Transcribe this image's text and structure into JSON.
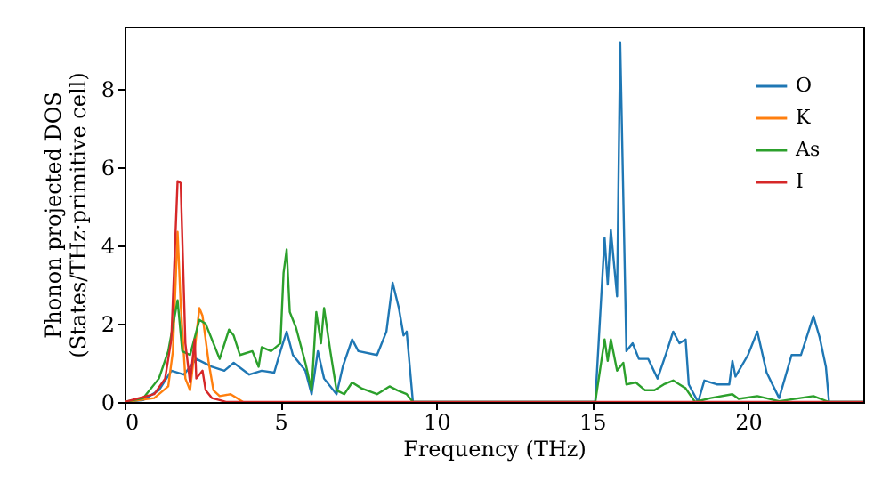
{
  "chart_data": {
    "type": "line",
    "xlabel": "Frequency (THz)",
    "ylabel": "Phonon projected DOS\n(States/THz·primitive cell)",
    "xlim": [
      0,
      23.7
    ],
    "ylim": [
      0,
      9.6
    ],
    "xticks": [
      0,
      5,
      10,
      15,
      20
    ],
    "yticks": [
      0,
      2,
      4,
      6,
      8
    ],
    "grid": false,
    "legend": "top right",
    "series": [
      {
        "name": "O",
        "color": "#1f77b4",
        "x": [
          0,
          0.6,
          1.1,
          1.5,
          1.9,
          2.3,
          2.8,
          3.2,
          3.5,
          4.0,
          4.4,
          4.8,
          5.0,
          5.2,
          5.4,
          5.8,
          6.0,
          6.2,
          6.4,
          6.8,
          7.0,
          7.3,
          7.5,
          8.1,
          8.4,
          8.6,
          8.8,
          8.95,
          9.05,
          9.25,
          15.1,
          15.4,
          15.5,
          15.6,
          15.8,
          15.9,
          16.1,
          16.3,
          16.5,
          16.8,
          17.1,
          17.4,
          17.6,
          17.8,
          18.0,
          18.1,
          18.4,
          18.6,
          19.0,
          19.4,
          19.5,
          19.6,
          20.0,
          20.3,
          20.6,
          21.0,
          21.4,
          21.7,
          22.1,
          22.3,
          22.5,
          22.6,
          23.7
        ],
        "values": [
          0,
          0.05,
          0.3,
          0.8,
          0.7,
          1.1,
          0.9,
          0.8,
          1.0,
          0.7,
          0.8,
          0.75,
          1.3,
          1.8,
          1.2,
          0.8,
          0.2,
          1.3,
          0.6,
          0.2,
          0.9,
          1.6,
          1.3,
          1.2,
          1.8,
          3.05,
          2.4,
          1.7,
          1.8,
          0,
          0,
          4.2,
          3.0,
          4.4,
          2.7,
          9.2,
          1.3,
          1.5,
          1.1,
          1.1,
          0.6,
          1.3,
          1.8,
          1.5,
          1.6,
          0.45,
          0,
          0.55,
          0.45,
          0.45,
          1.05,
          0.65,
          1.2,
          1.8,
          0.75,
          0.1,
          1.2,
          1.2,
          2.2,
          1.65,
          0.9,
          0,
          0
        ]
      },
      {
        "name": "K",
        "color": "#ff7f0e",
        "x": [
          0,
          0.95,
          1.4,
          1.55,
          1.7,
          1.8,
          1.95,
          2.1,
          2.4,
          2.5,
          2.7,
          2.85,
          3.05,
          3.4,
          3.6,
          3.8
        ],
        "values": [
          0,
          0.1,
          0.4,
          1.3,
          4.35,
          2.5,
          0.6,
          0.3,
          2.4,
          2.2,
          1.0,
          0.3,
          0.15,
          0.2,
          0.1,
          0
        ]
      },
      {
        "name": "As",
        "color": "#2ca02c",
        "x": [
          0,
          0.6,
          1.1,
          1.4,
          1.7,
          1.85,
          2.1,
          2.4,
          2.6,
          2.8,
          3.05,
          3.35,
          3.5,
          3.7,
          4.1,
          4.3,
          4.4,
          4.7,
          5.0,
          5.1,
          5.2,
          5.3,
          5.5,
          5.8,
          6.0,
          6.15,
          6.3,
          6.4,
          6.6,
          6.8,
          7.05,
          7.3,
          7.6,
          8.1,
          8.5,
          8.75,
          9.05,
          9.25,
          15.1,
          15.4,
          15.5,
          15.6,
          15.8,
          16.0,
          16.1,
          16.4,
          16.7,
          17.0,
          17.3,
          17.6,
          18.0,
          18.3,
          18.8,
          19.5,
          19.7,
          20.3,
          21.0,
          22.1,
          22.6,
          23.7
        ],
        "values": [
          0,
          0.1,
          0.6,
          1.3,
          2.6,
          1.3,
          1.2,
          2.1,
          2.0,
          1.6,
          1.1,
          1.85,
          1.7,
          1.2,
          1.3,
          0.9,
          1.4,
          1.3,
          1.5,
          3.3,
          3.9,
          2.3,
          1.9,
          1.0,
          0.3,
          2.3,
          1.5,
          2.4,
          1.3,
          0.3,
          0.2,
          0.5,
          0.35,
          0.2,
          0.4,
          0.3,
          0.2,
          0,
          0,
          1.6,
          1.05,
          1.6,
          0.8,
          1.0,
          0.45,
          0.5,
          0.3,
          0.3,
          0.45,
          0.55,
          0.35,
          0,
          0.1,
          0.2,
          0.08,
          0.15,
          0.02,
          0.15,
          0,
          0
        ]
      },
      {
        "name": "I",
        "color": "#d62728",
        "x": [
          0,
          0.95,
          1.3,
          1.5,
          1.7,
          1.8,
          1.95,
          2.1,
          2.25,
          2.3,
          2.5,
          2.6,
          2.8,
          3.05,
          3.25,
          23.7
        ],
        "values": [
          0,
          0.2,
          0.6,
          1.6,
          5.65,
          5.6,
          1.5,
          0.5,
          1.6,
          0.6,
          0.8,
          0.3,
          0.1,
          0.05,
          0,
          0
        ]
      }
    ]
  }
}
